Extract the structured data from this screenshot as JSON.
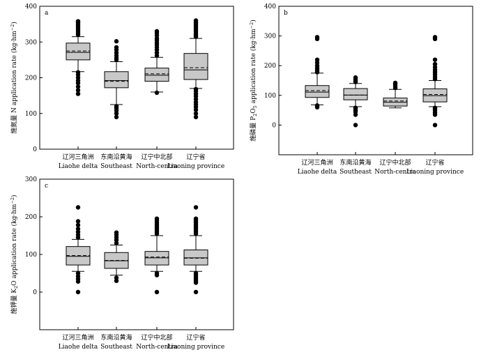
{
  "chart_data": [
    {
      "type": "box",
      "panel_label": "a",
      "ylabel_cn": "施氮量",
      "ylabel_en_prefix": "N application rate (kg·hm",
      "ylabel_en_sup": "−2",
      "ylabel_en_suffix": ")",
      "ylim": [
        0,
        400
      ],
      "yticks": [
        "0",
        "100",
        "200",
        "300",
        "400"
      ],
      "categories_cn": [
        "辽河三角洲",
        "东南沿黄海",
        "辽宁中北部",
        "辽宁省"
      ],
      "categories_en": [
        "Liaohe delta",
        "Southeast",
        "North-centra",
        "Liaoning province"
      ],
      "boxes": [
        {
          "whisker_low": 217,
          "q1": 250,
          "median": 271,
          "mean": 275,
          "q3": 297,
          "whisker_high": 315,
          "outliers": [
            155,
            165,
            175,
            185,
            192,
            200,
            208,
            215,
            320,
            325,
            330,
            335,
            340,
            345,
            350,
            355,
            358
          ]
        },
        {
          "whisker_low": 125,
          "q1": 172,
          "median": 192,
          "mean": 190,
          "q3": 217,
          "whisker_high": 245,
          "outliers": [
            90,
            100,
            108,
            115,
            120,
            250,
            255,
            262,
            270,
            278,
            285,
            302
          ]
        },
        {
          "whisker_low": 160,
          "q1": 190,
          "median": 207,
          "mean": 211,
          "q3": 227,
          "whisker_high": 257,
          "outliers": [
            158,
            262,
            270,
            278,
            285,
            292,
            298,
            305,
            310,
            318,
            325,
            330
          ]
        },
        {
          "whisker_low": 170,
          "q1": 195,
          "median": 222,
          "mean": 228,
          "q3": 268,
          "whisker_high": 310,
          "outliers": [
            90,
            100,
            110,
            118,
            125,
            132,
            140,
            148,
            155,
            162,
            168,
            315,
            320,
            325,
            330,
            335,
            340,
            345,
            350,
            355,
            360
          ]
        }
      ]
    },
    {
      "type": "box",
      "panel_label": "b",
      "ylabel_cn": "施磷量",
      "ylabel_en_prefix": "P",
      "ylabel_en_sub1": "2",
      "ylabel_en_mid": "O",
      "ylabel_en_sub2": "5",
      "ylabel_en_rest": " application rate (kg·hm",
      "ylabel_en_sup": "−2",
      "ylabel_en_suffix": ")",
      "ylim": [
        -100,
        400
      ],
      "yticks": [
        "0",
        "100",
        "200",
        "300",
        "400"
      ],
      "categories_cn": [
        "辽河三角洲",
        "东南沿黄海",
        "辽宁中北部",
        "辽宁省"
      ],
      "categories_en": [
        "Liaohe delta",
        "Southeast",
        "North-centra",
        "Liaoning province"
      ],
      "boxes": [
        {
          "whisker_low": 68,
          "q1": 93,
          "median": 111,
          "mean": 116,
          "q3": 133,
          "whisker_high": 175,
          "outliers": [
            60,
            63,
            66,
            178,
            185,
            192,
            200,
            210,
            220,
            290,
            296
          ]
        },
        {
          "whisker_low": 62,
          "q1": 85,
          "median": 101,
          "mean": 101,
          "q3": 123,
          "whisker_high": 140,
          "outliers": [
            0,
            35,
            45,
            50,
            55,
            58,
            145,
            150,
            155,
            160
          ]
        },
        {
          "whisker_low": 58,
          "q1": 64,
          "median": 77,
          "mean": 81,
          "q3": 91,
          "whisker_high": 120,
          "outliers": [
            125,
            132,
            138,
            142
          ]
        },
        {
          "whisker_low": 62,
          "q1": 78,
          "median": 99,
          "mean": 103,
          "q3": 122,
          "whisker_high": 150,
          "outliers": [
            0,
            35,
            42,
            50,
            55,
            58,
            155,
            162,
            170,
            178,
            186,
            195,
            205,
            220,
            290,
            296
          ]
        }
      ]
    },
    {
      "type": "box",
      "panel_label": "c",
      "ylabel_cn": "施钾量",
      "ylabel_en_prefix": "K",
      "ylabel_en_sub1": "2",
      "ylabel_en_mid": "O",
      "ylabel_en_rest": " application rate (kg·hm",
      "ylabel_en_sup": "−2",
      "ylabel_en_suffix": ")",
      "ylim": [
        -100,
        300
      ],
      "yticks": [
        "0",
        "100",
        "200",
        "300"
      ],
      "categories_cn": [
        "辽河三角洲",
        "东南沿黄海",
        "辽宁中北部",
        "辽宁省"
      ],
      "categories_en": [
        "Liaohe delta",
        "Southeast",
        "North-centra",
        "Liaoning province"
      ],
      "boxes": [
        {
          "whisker_low": 55,
          "q1": 72,
          "median": 95,
          "mean": 97,
          "q3": 121,
          "whisker_high": 140,
          "outliers": [
            0,
            28,
            35,
            42,
            50,
            145,
            152,
            160,
            168,
            178,
            188,
            225
          ]
        },
        {
          "whisker_low": 45,
          "q1": 63,
          "median": 83,
          "mean": 84,
          "q3": 105,
          "whisker_high": 125,
          "outliers": [
            30,
            38,
            130,
            138,
            145,
            152,
            158
          ]
        },
        {
          "whisker_low": 55,
          "q1": 72,
          "median": 91,
          "mean": 93,
          "q3": 108,
          "whisker_high": 150,
          "outliers": [
            0,
            45,
            50,
            155,
            160,
            165,
            170,
            175,
            180,
            185,
            190,
            195
          ]
        },
        {
          "whisker_low": 55,
          "q1": 72,
          "median": 91,
          "mean": 90,
          "q3": 112,
          "whisker_high": 150,
          "outliers": [
            0,
            25,
            30,
            35,
            40,
            45,
            50,
            155,
            160,
            165,
            170,
            175,
            180,
            185,
            190,
            195,
            225
          ]
        }
      ]
    }
  ],
  "colors": {
    "box_fill": "#c8c8c8",
    "stroke": "#000000",
    "outlier": "#000000"
  }
}
